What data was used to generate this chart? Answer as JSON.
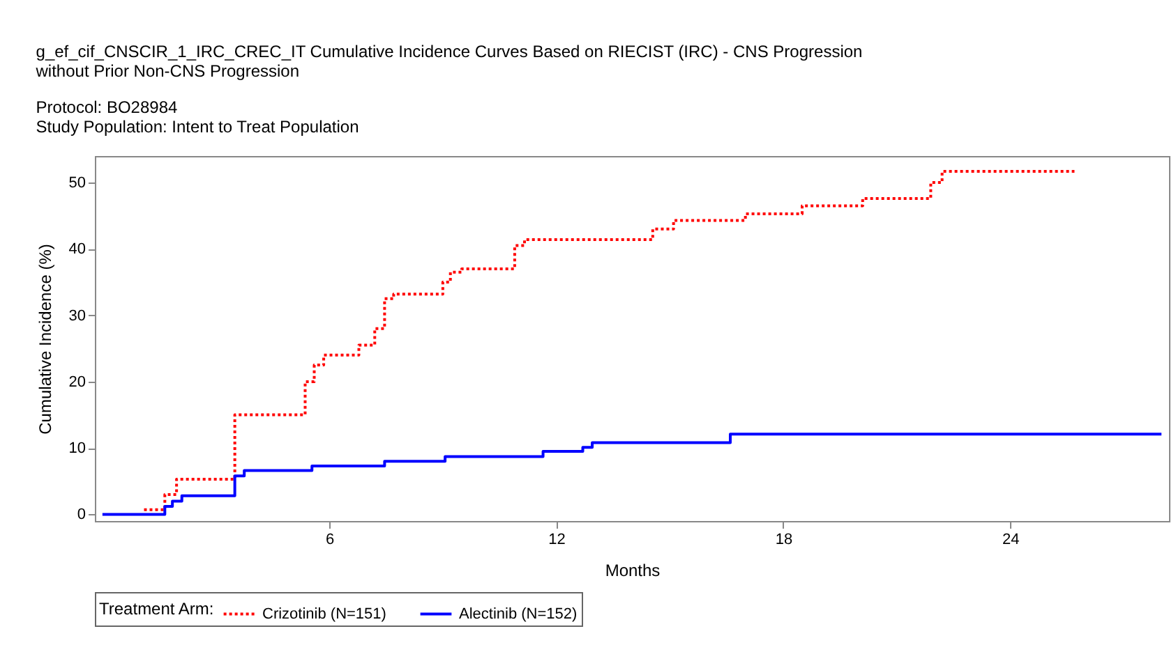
{
  "chart_data": {
    "type": "step",
    "title": "g_ef_cif_CNSCIR_1_IRC_CREC_IT Cumulative Incidence Curves Based on RIECIST (IRC) - CNS Progression without Prior Non-CNS Progression",
    "subtitle": "Protocol: BO28984",
    "annotations": [
      "Study Population: Intent to Treat Population"
    ],
    "xlabel": "Months",
    "ylabel": "Cumulative Incidence (%)",
    "legend_title": "Treatment Arm:",
    "legend": "bottom",
    "grid": false,
    "xlim": [
      -0.2,
      28.2
    ],
    "xticks": [
      6,
      12,
      18,
      24
    ],
    "ylim": [
      -1,
      54
    ],
    "yticks": [
      0,
      10,
      20,
      30,
      40,
      50
    ],
    "series": [
      {
        "name": "Crizotinib (N=151)",
        "color": "#ff0000",
        "line_style": "dotted",
        "x": [
          1.1,
          1.65,
          1.96,
          3.5,
          5.36,
          5.6,
          5.85,
          6.78,
          7.2,
          7.46,
          7.7,
          9.0,
          9.2,
          9.5,
          10.9,
          11.16,
          14.55,
          15.1,
          17.0,
          18.5,
          20.1,
          21.9,
          22.2,
          25.7
        ],
        "values": [
          0.7,
          3,
          5.3,
          15,
          20,
          22.5,
          24,
          25.5,
          28,
          32.5,
          33.2,
          35,
          36.5,
          37,
          40.5,
          41.4,
          43,
          44.3,
          45.3,
          46.5,
          47.6,
          50,
          51.7,
          51.7
        ]
      },
      {
        "name": "Alectinib (N=152)",
        "color": "#0000ff",
        "line_style": "solid",
        "x": [
          0,
          1.65,
          1.85,
          2.1,
          3.5,
          3.75,
          5.54,
          7.46,
          9.06,
          11.65,
          12.7,
          12.95,
          16.6,
          28
        ],
        "values": [
          0,
          1.2,
          2.0,
          2.8,
          5.8,
          6.6,
          7.3,
          8.0,
          8.7,
          9.5,
          10.1,
          10.8,
          12.1,
          12.1
        ]
      }
    ]
  }
}
